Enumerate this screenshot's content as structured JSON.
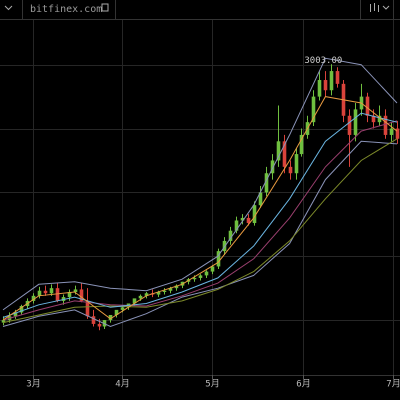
{
  "header": {
    "site": "bitfinex.com"
  },
  "chart_data": {
    "type": "candlestick",
    "annotation": "3003.00",
    "up_color": "#6fbf3f",
    "down_color": "#d9433b",
    "open": [
      980,
      1000,
      1030,
      1060,
      1110,
      1150,
      1190,
      1230,
      1210,
      1250,
      1150,
      1180,
      1220,
      1240,
      1150,
      1030,
      970,
      950,
      1000,
      1040,
      1080,
      1100,
      1130,
      1170,
      1190,
      1210,
      1200,
      1220,
      1230,
      1250,
      1270,
      1300,
      1320,
      1330,
      1350,
      1380,
      1420,
      1540,
      1620,
      1700,
      1780,
      1800,
      1760,
      1900,
      2000,
      2150,
      2250,
      2400,
      2200,
      2150,
      2300,
      2450,
      2550,
      2750,
      2880,
      2800,
      2950,
      2850,
      2600,
      2450,
      2650,
      2750,
      2600,
      2550,
      2600,
      2450,
      2500
    ],
    "high": [
      1030,
      1060,
      1080,
      1120,
      1170,
      1210,
      1260,
      1270,
      1280,
      1290,
      1200,
      1240,
      1270,
      1290,
      1250,
      1080,
      1010,
      1000,
      1030,
      1070,
      1110,
      1130,
      1160,
      1200,
      1220,
      1240,
      1230,
      1250,
      1260,
      1280,
      1300,
      1330,
      1350,
      1360,
      1390,
      1430,
      1560,
      1650,
      1730,
      1810,
      1830,
      1830,
      1930,
      2050,
      2200,
      2300,
      2680,
      2450,
      2250,
      2350,
      2500,
      2600,
      2800,
      2950,
      2950,
      3003,
      2980,
      2880,
      2650,
      2700,
      2850,
      2780,
      2650,
      2680,
      2650,
      2550,
      2560
    ],
    "low": [
      960,
      980,
      1010,
      1040,
      1090,
      1130,
      1170,
      1190,
      1190,
      1140,
      1120,
      1150,
      1200,
      1140,
      1010,
      950,
      920,
      930,
      980,
      1020,
      1060,
      1080,
      1110,
      1150,
      1170,
      1180,
      1180,
      1200,
      1210,
      1230,
      1250,
      1280,
      1300,
      1310,
      1330,
      1360,
      1400,
      1510,
      1590,
      1680,
      1750,
      1740,
      1740,
      1880,
      1970,
      2100,
      2200,
      2150,
      2100,
      2100,
      2280,
      2420,
      2520,
      2720,
      2750,
      2760,
      2820,
      2550,
      2200,
      2400,
      2600,
      2550,
      2500,
      2520,
      2420,
      2400,
      2380
    ],
    "close": [
      1000,
      1030,
      1060,
      1110,
      1150,
      1190,
      1230,
      1210,
      1250,
      1150,
      1180,
      1220,
      1240,
      1150,
      1030,
      970,
      950,
      1000,
      1040,
      1080,
      1100,
      1130,
      1170,
      1190,
      1210,
      1200,
      1220,
      1230,
      1250,
      1270,
      1300,
      1320,
      1330,
      1350,
      1380,
      1420,
      1540,
      1620,
      1700,
      1780,
      1800,
      1760,
      1900,
      2000,
      2150,
      2250,
      2400,
      2200,
      2150,
      2300,
      2450,
      2550,
      2750,
      2880,
      2800,
      2950,
      2850,
      2600,
      2450,
      2650,
      2750,
      2600,
      2550,
      2600,
      2450,
      2500,
      2420
    ],
    "overlays": [
      {
        "color": "#8a93b8",
        "x": [
          0,
          6,
          12,
          18,
          24,
          30,
          36,
          42,
          48,
          54,
          60,
          66
        ],
        "values": [
          1080,
          1280,
          1300,
          1250,
          1230,
          1320,
          1500,
          1900,
          2450,
          3050,
          3000,
          2700
        ]
      },
      {
        "color": "#8a93b8",
        "x": [
          0,
          6,
          12,
          18,
          24,
          30,
          36,
          42,
          48,
          54,
          60,
          66
        ],
        "values": [
          950,
          1030,
          1080,
          950,
          1050,
          1180,
          1250,
          1350,
          1600,
          2100,
          2400,
          2380
        ]
      },
      {
        "color": "#7d8a2a",
        "x": [
          0,
          6,
          12,
          18,
          24,
          30,
          36,
          42,
          48,
          54,
          60,
          66
        ],
        "values": [
          980,
          1040,
          1100,
          1110,
          1100,
          1150,
          1240,
          1380,
          1620,
          1950,
          2250,
          2420
        ]
      },
      {
        "color": "#9a3f6e",
        "x": [
          0,
          6,
          12,
          18,
          24,
          30,
          36,
          42,
          48,
          54,
          60,
          66
        ],
        "values": [
          1000,
          1080,
          1150,
          1120,
          1110,
          1190,
          1290,
          1480,
          1800,
          2200,
          2480,
          2560
        ]
      },
      {
        "color": "#6ab4e0",
        "x": [
          0,
          6,
          12,
          18,
          24,
          30,
          36,
          42,
          48,
          54,
          60,
          66
        ],
        "values": [
          1020,
          1120,
          1180,
          1100,
          1130,
          1220,
          1330,
          1580,
          1950,
          2400,
          2620,
          2550
        ]
      },
      {
        "color": "#e89a40",
        "x": [
          0,
          6,
          12,
          18,
          24,
          30,
          36,
          42,
          48,
          54,
          60,
          66
        ],
        "values": [
          1000,
          1190,
          1220,
          1010,
          1190,
          1280,
          1450,
          1800,
          2250,
          2750,
          2700,
          2480
        ]
      }
    ],
    "xlim": [
      -0.5,
      66.5
    ],
    "xticks": [
      {
        "value": 5,
        "label": "3月"
      },
      {
        "value": 20,
        "label": "4月"
      },
      {
        "value": 35,
        "label": "5月"
      },
      {
        "value": 50.3,
        "label": "6月"
      },
      {
        "value": 65.3,
        "label": "7月"
      }
    ],
    "ylim": [
      570,
      3350
    ],
    "ygrid": [
      1000,
      1500,
      2000,
      2500,
      3000
    ]
  }
}
